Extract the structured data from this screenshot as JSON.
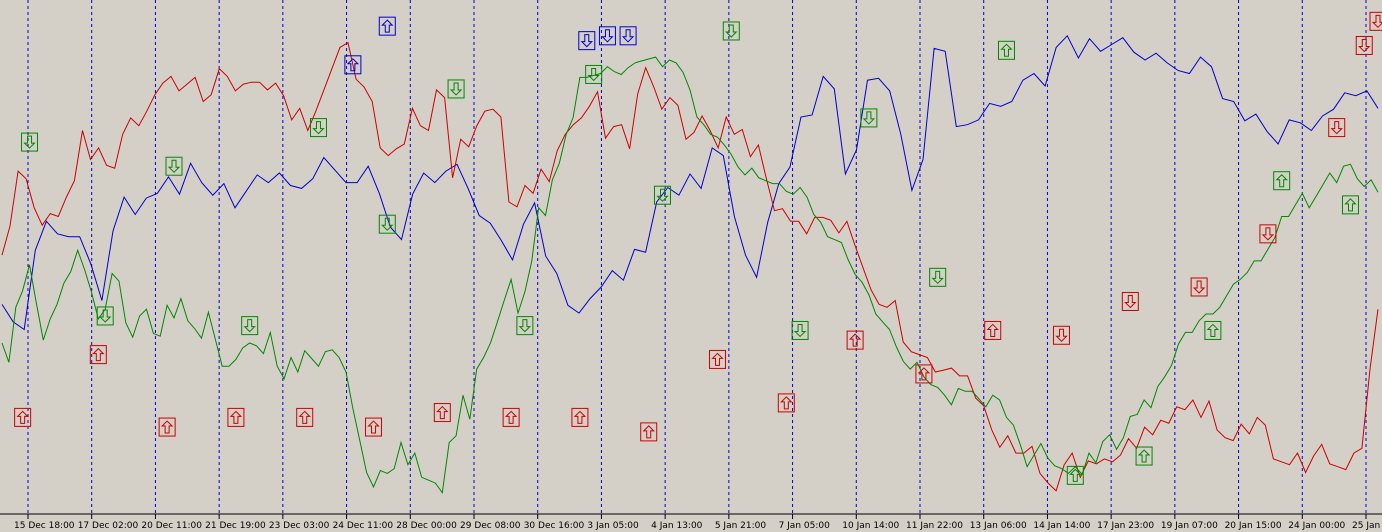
{
  "chart_data": {
    "type": "line",
    "title": "",
    "xlabel": "",
    "ylabel": "",
    "grid": "vertical dashed lines at each x tick",
    "x_ticks": [
      "15 Dec 18:00",
      "17 Dec 02:00",
      "20 Dec 11:00",
      "21 Dec 19:00",
      "23 Dec 03:00",
      "24 Dec 11:00",
      "28 Dec 00:00",
      "29 Dec 08:00",
      "30 Dec 16:00",
      "3 Jan 05:00",
      "4 Jan 13:00",
      "5 Jan 21:00",
      "7 Jan 05:00",
      "10 Jan 14:00",
      "11 Jan 22:00",
      "13 Jan 06:00",
      "14 Jan 14:00",
      "17 Jan 23:00",
      "19 Jan 07:00",
      "20 Jan 15:00",
      "24 Jan 00:00",
      "25 Jan"
    ],
    "colors": {
      "background": "#d4d0c8",
      "grid": "#0000cc",
      "axis": "#000000"
    },
    "series": [
      {
        "color": "#0000cc",
        "values": [
          220,
          200,
          190,
          270,
          305,
          290,
          285,
          290,
          260,
          220,
          290,
          330,
          310,
          325,
          335,
          350,
          330,
          360,
          345,
          330,
          340,
          320,
          335,
          350,
          340,
          355,
          340,
          335,
          350,
          370,
          355,
          340,
          345,
          360,
          330,
          300,
          285,
          330,
          350,
          345,
          355,
          360,
          340,
          310,
          300,
          280,
          265,
          300,
          320,
          270,
          250,
          215,
          205,
          225,
          235,
          250,
          245,
          275,
          270,
          320,
          340,
          330,
          350,
          340,
          380,
          370,
          305,
          270,
          245,
          300,
          345,
          360,
          410,
          410,
          455,
          440,
          350,
          380,
          450,
          450,
          435,
          395,
          335,
          365,
          485,
          480,
          400,
          400,
          410,
          425,
          420,
          430,
          450,
          455,
          440,
          485,
          495,
          470,
          495,
          480,
          485,
          490,
          480,
          470,
          475,
          470,
          460,
          455,
          470,
          465,
          430,
          425,
          410,
          415,
          395,
          380,
          410,
          405,
          395,
          415,
          420,
          435,
          430,
          440,
          420
        ],
        "markers": [
          {
            "i": 51,
            "value": 465,
            "dir": "up"
          },
          {
            "i": 56,
            "value": 505,
            "dir": "up"
          },
          {
            "i": 85,
            "value": 490,
            "dir": "down"
          },
          {
            "i": 88,
            "value": 495,
            "dir": "down"
          },
          {
            "i": 91,
            "value": 495,
            "dir": "down"
          }
        ]
      },
      {
        "color": "#cc0000",
        "values": [
          265,
          300,
          355,
          345,
          320,
          300,
          310,
          305,
          330,
          345,
          395,
          370,
          380,
          360,
          355,
          395,
          410,
          400,
          420,
          435,
          445,
          450,
          440,
          445,
          450,
          430,
          435,
          460,
          450,
          440,
          445,
          445,
          450,
          440,
          445,
          430,
          410,
          420,
          395,
          420,
          440,
          460,
          480,
          490,
          450,
          440,
          430,
          380,
          370,
          375,
          385,
          420,
          400,
          400,
          440,
          430,
          345,
          390,
          380,
          400,
          420,
          420,
          410,
          320,
          320,
          340,
          330,
          360,
          345,
          375,
          390,
          405,
          410,
          420,
          440,
          390,
          400,
          400,
          380,
          435,
          460,
          445,
          420,
          430,
          420,
          390,
          395,
          410,
          400,
          380,
          410,
          390,
          400,
          370,
          380,
          350,
          315,
          315,
          300,
          305,
          290,
          305,
          310,
          305,
          290,
          300,
          280,
          255,
          230,
          220,
          215,
          220,
          175,
          170,
          165,
          160,
          150,
          150,
          150,
          140,
          145,
          120,
          110,
          90,
          70,
          80,
          60,
          65,
          70,
          40,
          35,
          25,
          50,
          60,
          40,
          55,
          50,
          60,
          55,
          60,
          75,
          70,
          90,
          80,
          100,
          95,
          110,
          105,
          120,
          100,
          115,
          90,
          80,
          75,
          90,
          85,
          100,
          90,
          60,
          55,
          50,
          60,
          45,
          60,
          70,
          55,
          50,
          45,
          60,
          70,
          150,
          210
        ]
      },
      {
        "color": "#008800",
        "values": [
          175,
          160,
          215,
          230,
          255,
          220,
          180,
          200,
          220,
          240,
          250,
          270,
          255,
          230,
          200,
          215,
          250,
          240,
          195,
          185,
          205,
          210,
          190,
          185,
          215,
          200,
          225,
          200,
          190,
          185,
          210,
          180,
          150,
          155,
          160,
          170,
          180,
          175,
          165,
          185,
          155,
          140,
          160,
          150,
          170,
          160,
          150,
          170,
          170,
          160,
          150,
          110,
          75,
          40,
          30,
          45,
          40,
          50,
          75,
          50,
          60,
          40,
          35,
          30,
          25,
          75,
          80,
          120,
          100,
          150,
          160,
          180,
          200,
          220,
          240,
          210,
          230,
          260,
          320,
          310,
          345,
          360,
          395,
          410,
          450,
          455,
          455,
          455,
          460,
          460,
          455,
          460,
          470,
          470,
          470,
          470,
          465,
          470,
          465,
          460,
          440,
          410,
          400,
          395,
          390,
          380,
          375,
          360,
          350,
          355,
          350,
          345,
          340,
          345,
          335,
          330,
          335,
          330,
          310,
          300,
          290,
          285,
          280,
          260,
          250,
          240,
          225,
          210,
          200,
          190,
          170,
          160,
          150,
          155,
          145,
          135,
          130,
          120,
          115,
          130,
          125,
          130,
          120,
          110,
          120,
          120,
          100,
          90,
          75,
          50,
          60,
          70,
          60,
          50,
          45,
          45,
          50,
          40,
          60,
          55,
          75,
          80,
          70,
          80,
          100,
          100,
          120,
          110,
          130,
          145,
          155,
          175,
          185,
          190,
          200,
          205,
          210,
          215,
          225,
          235,
          245,
          250,
          260,
          265,
          275,
          285,
          305,
          310,
          320,
          330,
          320,
          330,
          340,
          350,
          345,
          360,
          360,
          350,
          340,
          345,
          330
        ]
      }
    ],
    "green_markers": [
      {
        "i": 4,
        "value": 385,
        "dir": "down"
      },
      {
        "i": 15,
        "value": 205,
        "dir": "down"
      },
      {
        "i": 25,
        "value": 360,
        "dir": "down"
      },
      {
        "i": 36,
        "value": 195,
        "dir": "down"
      },
      {
        "i": 46,
        "value": 400,
        "dir": "down"
      },
      {
        "i": 56,
        "value": 300,
        "dir": "down"
      },
      {
        "i": 66,
        "value": 440,
        "dir": "down"
      },
      {
        "i": 76,
        "value": 195,
        "dir": "down"
      },
      {
        "i": 86,
        "value": 455,
        "dir": "down"
      },
      {
        "i": 96,
        "value": 330,
        "dir": "down"
      },
      {
        "i": 106,
        "value": 500,
        "dir": "down"
      },
      {
        "i": 116,
        "value": 190,
        "dir": "down"
      },
      {
        "i": 126,
        "value": 410,
        "dir": "down"
      },
      {
        "i": 136,
        "value": 245,
        "dir": "down"
      },
      {
        "i": 146,
        "value": 480,
        "dir": "up"
      },
      {
        "i": 156,
        "value": 40,
        "dir": "up"
      },
      {
        "i": 166,
        "value": 60,
        "dir": "up"
      },
      {
        "i": 176,
        "value": 190,
        "dir": "up"
      },
      {
        "i": 186,
        "value": 345,
        "dir": "up"
      },
      {
        "i": 196,
        "value": 320,
        "dir": "up"
      }
    ],
    "red_markers": [
      {
        "i": 3,
        "value": 100,
        "dir": "up"
      },
      {
        "i": 14,
        "value": 165,
        "dir": "up"
      },
      {
        "i": 24,
        "value": 90,
        "dir": "up"
      },
      {
        "i": 34,
        "value": 100,
        "dir": "up"
      },
      {
        "i": 44,
        "value": 100,
        "dir": "up"
      },
      {
        "i": 54,
        "value": 90,
        "dir": "up"
      },
      {
        "i": 64,
        "value": 105,
        "dir": "up"
      },
      {
        "i": 74,
        "value": 100,
        "dir": "up"
      },
      {
        "i": 84,
        "value": 100,
        "dir": "up"
      },
      {
        "i": 94,
        "value": 85,
        "dir": "up"
      },
      {
        "i": 104,
        "value": 160,
        "dir": "up"
      },
      {
        "i": 114,
        "value": 115,
        "dir": "up"
      },
      {
        "i": 124,
        "value": 180,
        "dir": "up"
      },
      {
        "i": 134,
        "value": 145,
        "dir": "up"
      },
      {
        "i": 144,
        "value": 190,
        "dir": "up"
      },
      {
        "i": 154,
        "value": 185,
        "dir": "down"
      },
      {
        "i": 164,
        "value": 220,
        "dir": "down"
      },
      {
        "i": 174,
        "value": 235,
        "dir": "down"
      },
      {
        "i": 184,
        "value": 290,
        "dir": "down"
      },
      {
        "i": 194,
        "value": 400,
        "dir": "down"
      }
    ],
    "red_markers_extra": [
      {
        "i": 198,
        "value": 485,
        "dir": "down"
      },
      {
        "i": 200,
        "value": 510,
        "dir": "down"
      },
      {
        "i": 202,
        "value": 500,
        "dir": "down"
      },
      {
        "i": 204,
        "value": 490,
        "dir": "down"
      }
    ],
    "ylim": [
      0,
      530
    ]
  }
}
